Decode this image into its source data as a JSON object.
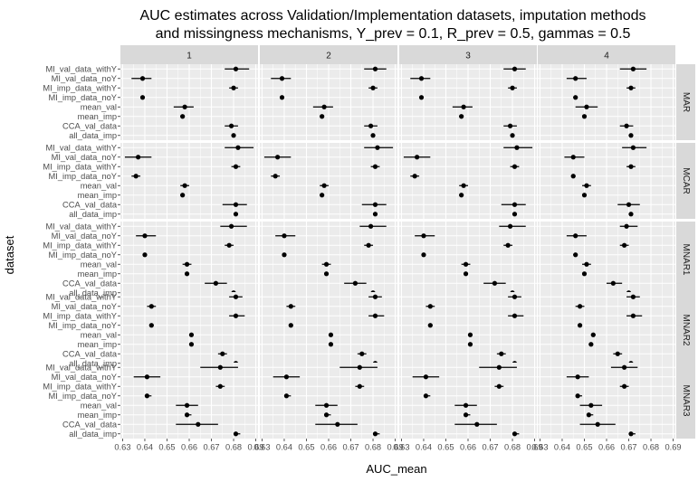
{
  "chart_data": {
    "type": "scatter",
    "title": "AUC estimates across Validation/Implementation datasets, imputation methods",
    "subtitle": "and missingness mechanisms, Y_prev = 0.1, R_prev = 0.5, gammas = 0.5",
    "xlabel": "AUC_mean",
    "ylabel": "dataset",
    "xlim": [
      0.629,
      0.691
    ],
    "x_ticks": [
      0.63,
      0.64,
      0.65,
      0.66,
      0.67,
      0.68,
      0.69
    ],
    "x_tick_labels": [
      "0.63",
      "0.64",
      "0.65",
      "0.66",
      "0.67",
      "0.68",
      "0.69"
    ],
    "columns": [
      "1",
      "2",
      "3",
      "4"
    ],
    "rows": [
      "MAR",
      "MCAR",
      "MNAR1",
      "MNAR2",
      "MNAR3"
    ],
    "datasets": [
      "MI_val_data_withY",
      "MI_val_data_noY",
      "MI_imp_data_withY",
      "MI_imp_data_noY",
      "mean_val",
      "mean_imp",
      "CCA_val_data",
      "all_data_imp"
    ],
    "grid": true,
    "panels": {
      "MAR": {
        "1": [
          [
            0.681,
            0.676,
            0.687
          ],
          [
            0.639,
            0.634,
            0.643
          ],
          [
            0.68,
            0.678,
            0.682
          ],
          [
            0.639,
            0.638,
            0.64
          ],
          [
            0.658,
            0.653,
            0.662
          ],
          [
            0.657,
            0.656,
            0.658
          ],
          [
            0.679,
            0.676,
            0.682
          ],
          [
            0.68,
            0.679,
            0.681
          ]
        ],
        "2": [
          [
            0.681,
            0.676,
            0.686
          ],
          [
            0.639,
            0.634,
            0.643
          ],
          [
            0.68,
            0.678,
            0.682
          ],
          [
            0.639,
            0.638,
            0.64
          ],
          [
            0.658,
            0.653,
            0.662
          ],
          [
            0.657,
            0.656,
            0.658
          ],
          [
            0.679,
            0.676,
            0.682
          ],
          [
            0.68,
            0.679,
            0.681
          ]
        ],
        "3": [
          [
            0.681,
            0.676,
            0.686
          ],
          [
            0.639,
            0.634,
            0.643
          ],
          [
            0.68,
            0.678,
            0.682
          ],
          [
            0.639,
            0.638,
            0.64
          ],
          [
            0.658,
            0.653,
            0.662
          ],
          [
            0.657,
            0.656,
            0.658
          ],
          [
            0.679,
            0.676,
            0.682
          ],
          [
            0.68,
            0.679,
            0.681
          ]
        ],
        "4": [
          [
            0.672,
            0.666,
            0.678
          ],
          [
            0.646,
            0.642,
            0.651
          ],
          [
            0.671,
            0.669,
            0.673
          ],
          [
            0.646,
            0.645,
            0.647
          ],
          [
            0.651,
            0.646,
            0.656
          ],
          [
            0.65,
            0.649,
            0.651
          ],
          [
            0.669,
            0.666,
            0.672
          ],
          [
            0.671,
            0.67,
            0.672
          ]
        ]
      },
      "MCAR": {
        "1": [
          [
            0.682,
            0.676,
            0.689
          ],
          [
            0.637,
            0.631,
            0.643
          ],
          [
            0.681,
            0.679,
            0.683
          ],
          [
            0.636,
            0.634,
            0.638
          ],
          [
            0.658,
            0.656,
            0.66
          ],
          [
            0.657,
            0.656,
            0.658
          ],
          [
            0.681,
            0.675,
            0.686
          ],
          [
            0.681,
            0.68,
            0.682
          ]
        ],
        "2": [
          [
            0.682,
            0.676,
            0.689
          ],
          [
            0.637,
            0.631,
            0.643
          ],
          [
            0.681,
            0.679,
            0.683
          ],
          [
            0.636,
            0.634,
            0.638
          ],
          [
            0.658,
            0.656,
            0.66
          ],
          [
            0.657,
            0.656,
            0.658
          ],
          [
            0.681,
            0.675,
            0.686
          ],
          [
            0.681,
            0.68,
            0.682
          ]
        ],
        "3": [
          [
            0.682,
            0.676,
            0.689
          ],
          [
            0.637,
            0.631,
            0.643
          ],
          [
            0.681,
            0.679,
            0.683
          ],
          [
            0.636,
            0.634,
            0.638
          ],
          [
            0.658,
            0.656,
            0.66
          ],
          [
            0.657,
            0.656,
            0.658
          ],
          [
            0.681,
            0.675,
            0.686
          ],
          [
            0.681,
            0.68,
            0.682
          ]
        ],
        "4": [
          [
            0.672,
            0.667,
            0.678
          ],
          [
            0.645,
            0.641,
            0.65
          ],
          [
            0.671,
            0.669,
            0.673
          ],
          [
            0.645,
            0.644,
            0.646
          ],
          [
            0.651,
            0.649,
            0.653
          ],
          [
            0.65,
            0.649,
            0.651
          ],
          [
            0.67,
            0.665,
            0.675
          ],
          [
            0.671,
            0.67,
            0.672
          ]
        ]
      },
      "MNAR1": {
        "1": [
          [
            0.679,
            0.674,
            0.686
          ],
          [
            0.64,
            0.636,
            0.645
          ],
          [
            0.678,
            0.676,
            0.68
          ],
          [
            0.64,
            0.639,
            0.641
          ],
          [
            0.659,
            0.657,
            0.661
          ],
          [
            0.659,
            0.658,
            0.66
          ],
          [
            0.672,
            0.667,
            0.677
          ],
          [
            0.68,
            0.679,
            0.681
          ]
        ],
        "2": [
          [
            0.679,
            0.674,
            0.686
          ],
          [
            0.64,
            0.636,
            0.645
          ],
          [
            0.678,
            0.676,
            0.68
          ],
          [
            0.64,
            0.639,
            0.641
          ],
          [
            0.659,
            0.657,
            0.661
          ],
          [
            0.659,
            0.658,
            0.66
          ],
          [
            0.672,
            0.667,
            0.677
          ],
          [
            0.68,
            0.679,
            0.681
          ]
        ],
        "3": [
          [
            0.679,
            0.674,
            0.686
          ],
          [
            0.64,
            0.636,
            0.645
          ],
          [
            0.678,
            0.676,
            0.68
          ],
          [
            0.64,
            0.639,
            0.641
          ],
          [
            0.659,
            0.657,
            0.661
          ],
          [
            0.659,
            0.658,
            0.66
          ],
          [
            0.672,
            0.667,
            0.677
          ],
          [
            0.68,
            0.679,
            0.681
          ]
        ],
        "4": [
          [
            0.669,
            0.666,
            0.674
          ],
          [
            0.646,
            0.642,
            0.651
          ],
          [
            0.668,
            0.666,
            0.67
          ],
          [
            0.646,
            0.645,
            0.647
          ],
          [
            0.651,
            0.649,
            0.653
          ],
          [
            0.65,
            0.649,
            0.651
          ],
          [
            0.663,
            0.66,
            0.667
          ],
          [
            0.67,
            0.669,
            0.671
          ]
        ]
      },
      "MNAR2": {
        "1": [
          [
            0.681,
            0.678,
            0.684
          ],
          [
            0.643,
            0.641,
            0.645
          ],
          [
            0.681,
            0.678,
            0.685
          ],
          [
            0.643,
            0.642,
            0.644
          ],
          [
            0.661,
            0.66,
            0.662
          ],
          [
            0.661,
            0.66,
            0.662
          ],
          [
            0.675,
            0.673,
            0.677
          ],
          [
            0.681,
            0.68,
            0.682
          ]
        ],
        "2": [
          [
            0.681,
            0.678,
            0.684
          ],
          [
            0.643,
            0.641,
            0.645
          ],
          [
            0.681,
            0.678,
            0.685
          ],
          [
            0.643,
            0.642,
            0.644
          ],
          [
            0.661,
            0.66,
            0.662
          ],
          [
            0.661,
            0.66,
            0.662
          ],
          [
            0.675,
            0.673,
            0.677
          ],
          [
            0.681,
            0.68,
            0.682
          ]
        ],
        "3": [
          [
            0.681,
            0.678,
            0.684
          ],
          [
            0.643,
            0.641,
            0.645
          ],
          [
            0.681,
            0.678,
            0.685
          ],
          [
            0.643,
            0.642,
            0.644
          ],
          [
            0.661,
            0.66,
            0.662
          ],
          [
            0.661,
            0.66,
            0.662
          ],
          [
            0.675,
            0.673,
            0.677
          ],
          [
            0.681,
            0.68,
            0.682
          ]
        ],
        "4": [
          [
            0.672,
            0.669,
            0.675
          ],
          [
            0.648,
            0.646,
            0.65
          ],
          [
            0.672,
            0.669,
            0.676
          ],
          [
            0.648,
            0.647,
            0.649
          ],
          [
            0.654,
            0.653,
            0.655
          ],
          [
            0.653,
            0.652,
            0.654
          ],
          [
            0.665,
            0.663,
            0.667
          ],
          [
            0.671,
            0.67,
            0.672
          ]
        ]
      },
      "MNAR3": {
        "1": [
          [
            0.674,
            0.665,
            0.682
          ],
          [
            0.641,
            0.635,
            0.647
          ],
          [
            0.674,
            0.672,
            0.676
          ],
          [
            0.641,
            0.64,
            0.643
          ],
          [
            0.659,
            0.654,
            0.664
          ],
          [
            0.659,
            0.658,
            0.661
          ],
          [
            0.664,
            0.654,
            0.673
          ],
          [
            0.681,
            0.68,
            0.683
          ]
        ],
        "2": [
          [
            0.674,
            0.665,
            0.682
          ],
          [
            0.641,
            0.635,
            0.647
          ],
          [
            0.674,
            0.672,
            0.676
          ],
          [
            0.641,
            0.64,
            0.643
          ],
          [
            0.659,
            0.654,
            0.664
          ],
          [
            0.659,
            0.658,
            0.661
          ],
          [
            0.664,
            0.654,
            0.673
          ],
          [
            0.681,
            0.68,
            0.683
          ]
        ],
        "3": [
          [
            0.674,
            0.665,
            0.682
          ],
          [
            0.641,
            0.635,
            0.647
          ],
          [
            0.674,
            0.672,
            0.676
          ],
          [
            0.641,
            0.64,
            0.643
          ],
          [
            0.659,
            0.654,
            0.664
          ],
          [
            0.659,
            0.658,
            0.661
          ],
          [
            0.664,
            0.654,
            0.673
          ],
          [
            0.681,
            0.68,
            0.683
          ]
        ],
        "4": [
          [
            0.668,
            0.662,
            0.674
          ],
          [
            0.647,
            0.642,
            0.652
          ],
          [
            0.668,
            0.666,
            0.67
          ],
          [
            0.647,
            0.646,
            0.649
          ],
          [
            0.653,
            0.648,
            0.658
          ],
          [
            0.652,
            0.651,
            0.654
          ],
          [
            0.656,
            0.648,
            0.664
          ],
          [
            0.671,
            0.67,
            0.673
          ]
        ]
      }
    },
    "colors": {
      "panel_background": "#ebebeb",
      "gridline": "#ffffff",
      "strip_background": "#d9d9d9",
      "point": "#000000",
      "errorbar": "#000000"
    }
  }
}
